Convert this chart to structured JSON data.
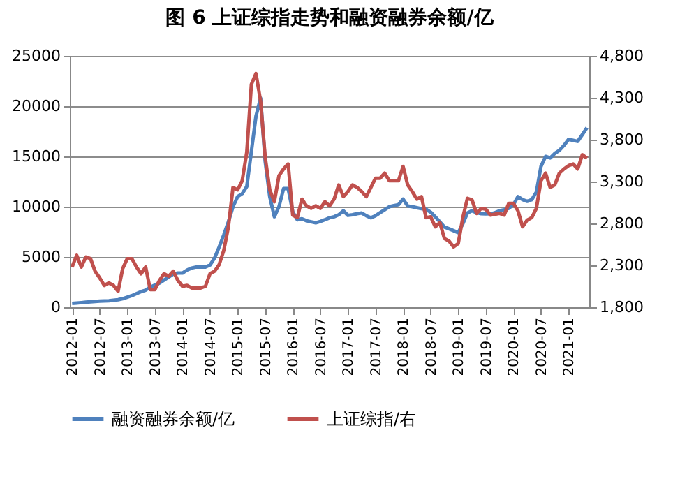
{
  "chart_data": {
    "type": "line",
    "title": "图 6  上证综指走势和融资融券余额/亿",
    "categories": [
      "2012-01",
      null,
      null,
      null,
      null,
      null,
      "2012-07",
      null,
      null,
      null,
      null,
      null,
      "2013-01",
      null,
      null,
      null,
      null,
      null,
      "2013-07",
      null,
      null,
      null,
      null,
      null,
      "2014-01",
      null,
      null,
      null,
      null,
      null,
      "2014-07",
      null,
      null,
      null,
      null,
      null,
      "2015-01",
      null,
      null,
      null,
      null,
      null,
      "2015-07",
      null,
      null,
      null,
      null,
      null,
      "2016-01",
      null,
      null,
      null,
      null,
      null,
      "2016-07",
      null,
      null,
      null,
      null,
      null,
      "2017-01",
      null,
      null,
      null,
      null,
      null,
      "2017-07",
      null,
      null,
      null,
      null,
      null,
      "2018-01",
      null,
      null,
      null,
      null,
      null,
      "2018-07",
      null,
      null,
      null,
      null,
      null,
      "2019-01",
      null,
      null,
      null,
      null,
      null,
      "2019-07",
      null,
      null,
      null,
      null,
      null,
      "2020-01",
      null,
      null,
      null,
      null,
      null,
      "2020-07",
      null,
      null,
      null,
      null,
      null,
      "2021-01",
      null,
      null,
      null,
      null
    ],
    "series": [
      {
        "name": "融资融券余额/亿",
        "color": "#4f81bd",
        "values": [
          380,
          420,
          460,
          500,
          540,
          580,
          600,
          620,
          650,
          700,
          750,
          850,
          1000,
          1150,
          1350,
          1550,
          1700,
          2000,
          2200,
          2400,
          2700,
          3000,
          3300,
          3400,
          3400,
          3700,
          3900,
          4000,
          4000,
          4000,
          4200,
          4900,
          6000,
          7200,
          8500,
          10000,
          11000,
          11300,
          12000,
          15500,
          19000,
          20800,
          14500,
          11000,
          9000,
          10000,
          11800,
          11800,
          9500,
          8700,
          8800,
          8600,
          8500,
          8400,
          8540,
          8700,
          8900,
          9000,
          9200,
          9600,
          9140,
          9200,
          9300,
          9370,
          9100,
          8900,
          9100,
          9400,
          9700,
          10000,
          10100,
          10200,
          10760,
          10070,
          10000,
          9900,
          9800,
          9740,
          9460,
          9000,
          8500,
          7980,
          7800,
          7610,
          7420,
          8300,
          9370,
          9600,
          9400,
          9300,
          9280,
          9300,
          9400,
          9600,
          9700,
          9840,
          10200,
          11000,
          10700,
          10530,
          10700,
          11460,
          14000,
          15000,
          14850,
          15300,
          15600,
          16100,
          16700,
          16600,
          16500,
          17170,
          17860
        ]
      },
      {
        "name": "上证综指/右",
        "color": "#c0504d",
        "axis": "y2",
        "values": [
          2280,
          2420,
          2280,
          2400,
          2380,
          2230,
          2150,
          2060,
          2090,
          2060,
          1990,
          2260,
          2380,
          2380,
          2280,
          2200,
          2280,
          2010,
          2010,
          2120,
          2200,
          2170,
          2230,
          2120,
          2050,
          2060,
          2030,
          2030,
          2030,
          2050,
          2200,
          2230,
          2310,
          2480,
          2760,
          3230,
          3200,
          3310,
          3650,
          4460,
          4590,
          4260,
          3590,
          3200,
          3060,
          3370,
          3450,
          3510,
          2900,
          2870,
          3090,
          3010,
          2980,
          3010,
          2980,
          3060,
          3010,
          3090,
          3260,
          3120,
          3180,
          3260,
          3230,
          3180,
          3120,
          3230,
          3340,
          3340,
          3400,
          3310,
          3310,
          3310,
          3480,
          3260,
          3180,
          3090,
          3120,
          2870,
          2880,
          2760,
          2810,
          2620,
          2590,
          2520,
          2560,
          2870,
          3100,
          3080,
          2920,
          2980,
          2970,
          2900,
          2910,
          2920,
          2900,
          3040,
          3040,
          2950,
          2760,
          2840,
          2870,
          2980,
          3310,
          3400,
          3230,
          3260,
          3400,
          3450,
          3490,
          3510,
          3450,
          3620,
          3580
        ]
      }
    ],
    "ylim": [
      0,
      25000
    ],
    "yticks": [
      0,
      5000,
      10000,
      15000,
      20000,
      25000
    ],
    "y2lim": [
      1800,
      4800
    ],
    "y2ticks": [
      {
        "value": 1800,
        "label": "1,800"
      },
      {
        "value": 2300,
        "label": "2,300"
      },
      {
        "value": 2800,
        "label": "2,800"
      },
      {
        "value": 3300,
        "label": "3,300"
      },
      {
        "value": 3800,
        "label": "3,800"
      },
      {
        "value": 4300,
        "label": "4,300"
      },
      {
        "value": 4800,
        "label": "4,800"
      }
    ],
    "grid": "y",
    "legend": "bottom"
  }
}
